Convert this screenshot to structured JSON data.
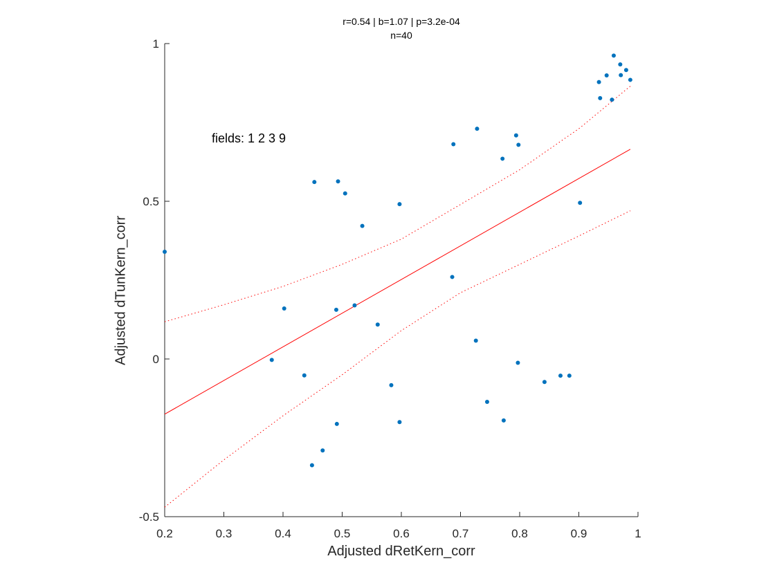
{
  "chart_data": {
    "type": "scatter",
    "title_lines": [
      "r=0.54 | b=1.07 | p=3.2e-04",
      "n=40"
    ],
    "xlabel": "Adjusted dRetKern_corr",
    "ylabel": "Adjusted dTunKern_corr",
    "annotation": "fields: 1 2 3 9",
    "xlim": [
      0.2,
      1
    ],
    "ylim": [
      -0.5,
      1
    ],
    "x_ticks": [
      0.2,
      0.3,
      0.4,
      0.5,
      0.6,
      0.7,
      0.8,
      0.9,
      1
    ],
    "x_tick_labels": [
      "0.2",
      "0.3",
      "0.4",
      "0.5",
      "0.6",
      "0.7",
      "0.8",
      "0.9",
      "1"
    ],
    "y_ticks": [
      -0.5,
      0,
      0.5,
      1
    ],
    "y_tick_labels": [
      "-0.5",
      "0",
      "0.5",
      "1"
    ],
    "grid": false,
    "colors": {
      "points": "#0072BD",
      "fit": "#FF0000",
      "axes": "#262626"
    },
    "series": [
      {
        "points": [
          [
            0.2,
            0.34
          ],
          [
            0.381,
            -0.003
          ],
          [
            0.402,
            0.16
          ],
          [
            0.436,
            -0.052
          ],
          [
            0.449,
            -0.337
          ],
          [
            0.453,
            0.561
          ],
          [
            0.467,
            -0.29
          ],
          [
            0.49,
            0.156
          ],
          [
            0.491,
            -0.206
          ],
          [
            0.493,
            0.563
          ],
          [
            0.505,
            0.525
          ],
          [
            0.521,
            0.17
          ],
          [
            0.534,
            0.422
          ],
          [
            0.56,
            0.109
          ],
          [
            0.583,
            -0.083
          ],
          [
            0.597,
            -0.2
          ],
          [
            0.597,
            0.491
          ],
          [
            0.686,
            0.26
          ],
          [
            0.688,
            0.681
          ],
          [
            0.726,
            0.058
          ],
          [
            0.728,
            0.73
          ],
          [
            0.745,
            -0.136
          ],
          [
            0.771,
            0.635
          ],
          [
            0.773,
            -0.195
          ],
          [
            0.794,
            0.709
          ],
          [
            0.797,
            -0.012
          ],
          [
            0.798,
            0.679
          ],
          [
            0.842,
            -0.073
          ],
          [
            0.869,
            -0.053
          ],
          [
            0.884,
            -0.053
          ],
          [
            0.902,
            0.495
          ],
          [
            0.934,
            0.878
          ],
          [
            0.936,
            0.827
          ],
          [
            0.947,
            0.899
          ],
          [
            0.956,
            0.822
          ],
          [
            0.959,
            0.962
          ],
          [
            0.97,
            0.934
          ],
          [
            0.971,
            0.9
          ],
          [
            0.98,
            0.916
          ],
          [
            0.987,
            0.885
          ]
        ]
      }
    ],
    "fit_line": {
      "x": [
        0.2,
        0.987
      ],
      "y": [
        -0.175,
        0.665
      ]
    },
    "confidence_band": {
      "x": [
        0.2,
        0.3,
        0.4,
        0.5,
        0.6,
        0.7,
        0.8,
        0.9,
        0.987
      ],
      "upper": [
        0.118,
        0.172,
        0.23,
        0.3,
        0.38,
        0.49,
        0.6,
        0.73,
        0.865
      ],
      "lower": [
        -0.47,
        -0.32,
        -0.18,
        -0.05,
        0.09,
        0.21,
        0.3,
        0.39,
        0.47
      ]
    }
  }
}
